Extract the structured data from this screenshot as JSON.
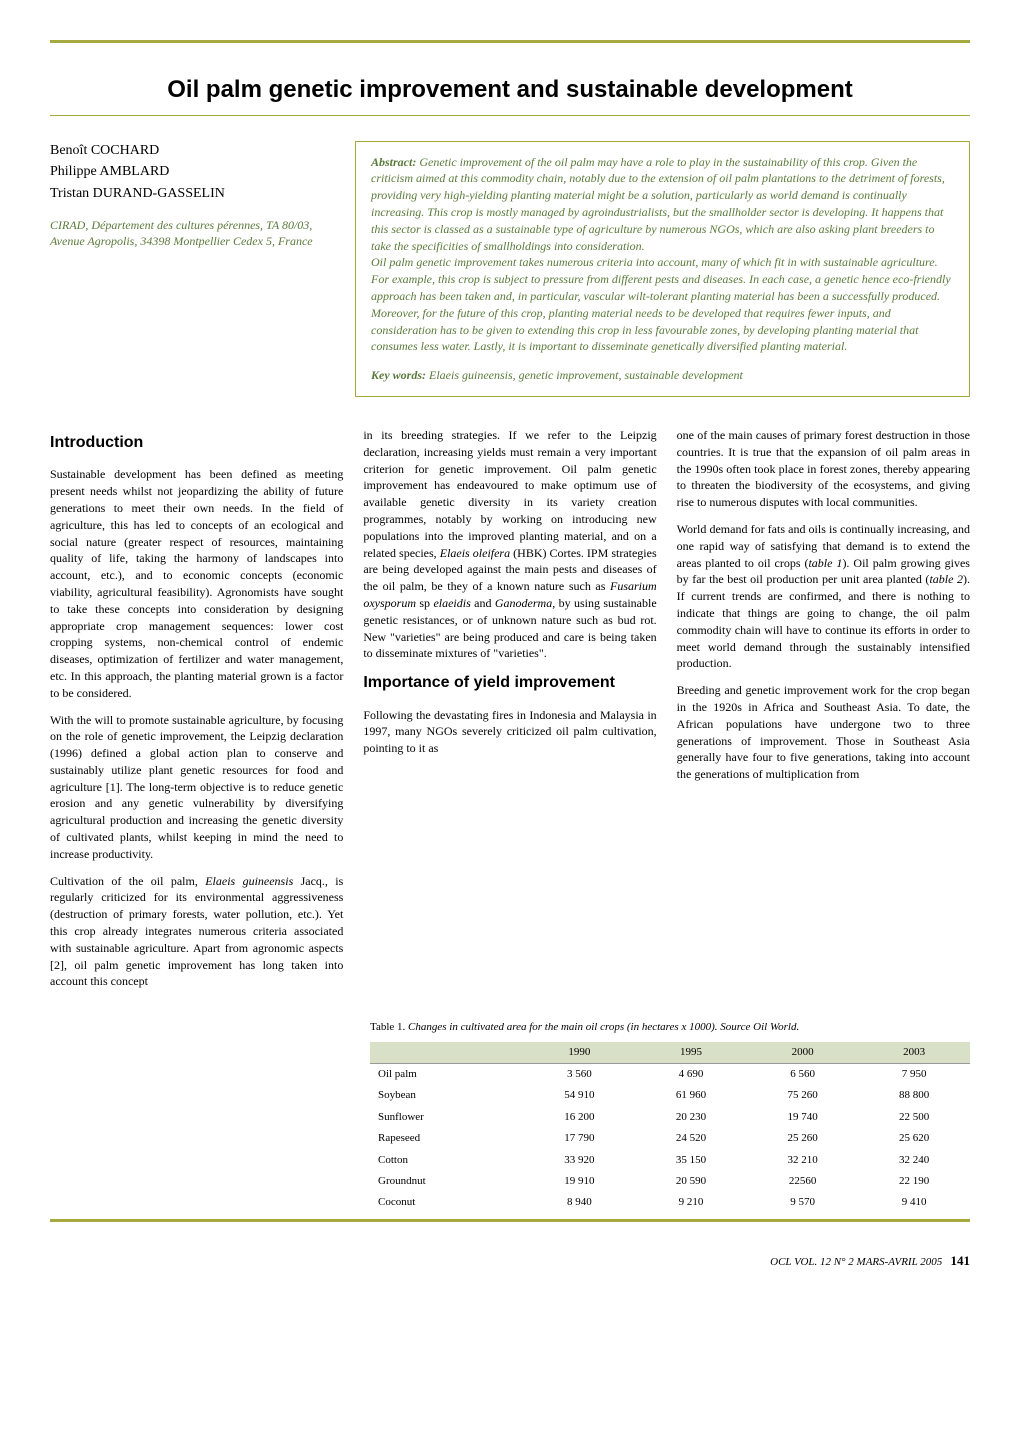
{
  "title": "Oil palm genetic improvement and sustainable development",
  "authors": [
    "Benoît COCHARD",
    "Philippe AMBLARD",
    "Tristan DURAND-GASSELIN"
  ],
  "affiliation": "CIRAD, Département des cultures pérennes, TA 80/03, Avenue Agropolis, 34398 Montpellier Cedex 5, France",
  "abstract_label": "Abstract:",
  "abstract_p1": "Genetic improvement of the oil palm may have a role to play in the sustainability of this crop. Given the criticism aimed at this commodity chain, notably due to the extension of oil palm plantations to the detriment of forests, providing very high-yielding planting material might be a solution, particularly as world demand is continually increasing. This crop is mostly managed by agroindustrialists, but the smallholder sector is developing. It happens that this sector is classed as a sustainable type of agriculture by numerous NGOs, which are also asking plant breeders to take the specificities of smallholdings into consideration.",
  "abstract_p2": "Oil palm genetic improvement takes numerous criteria into account, many of which fit in with sustainable agriculture. For example, this crop is subject to pressure from different pests and diseases. In each case, a genetic hence eco-friendly approach has been taken and, in particular, vascular wilt-tolerant planting material has been a successfully produced. Moreover, for the future of this crop, planting material needs to be developed that requires fewer inputs, and consideration has to be given to extending this crop in less favourable zones, by developing planting material that consumes less water. Lastly, it is important to disseminate genetically diversified planting material.",
  "keywords_label": "Key words:",
  "keywords": "Elaeis guineensis, genetic improvement, sustainable development",
  "sections": {
    "intro_heading": "Introduction",
    "importance_heading": "Importance of yield improvement"
  },
  "col1": {
    "p1": "Sustainable development has been defined as meeting present needs whilst not jeopardizing the ability of future generations to meet their own needs. In the field of agriculture, this has led to concepts of an ecological and social nature (greater respect of resources, maintaining quality of life, taking the harmony of landscapes into account, etc.), and to economic concepts (economic viability, agricultural feasibility). Agronomists have sought to take these concepts into consideration by designing appropriate crop management sequences: lower cost cropping systems, non-chemical control of endemic diseases, optimization of fertilizer and water management, etc. In this approach, the planting material grown is a factor to be considered.",
    "p2": "With the will to promote sustainable agriculture, by focusing on the role of genetic improvement, the Leipzig declaration (1996) defined a global action plan to conserve and sustainably utilize plant genetic resources for food and agriculture [1]. The long-term objective is to reduce genetic erosion and any genetic vulnerability by diversifying agricultural production and increasing the genetic diversity of cultivated plants, whilst keeping in mind the need to increase productivity.",
    "p3a": "Cultivation of the oil palm, ",
    "p3b": "Elaeis guineensis",
    "p3c": " Jacq., is regularly criticized for its environmental aggressiveness (destruction of primary forests, water pollution, etc.). Yet this crop already integrates numerous criteria associated with sustainable agriculture. Apart from agronomic aspects [2], oil palm genetic improvement has long taken into account this concept"
  },
  "col2": {
    "p1a": "in its breeding strategies. If we refer to the Leipzig declaration, increasing yields must remain a very important criterion for genetic improvement. Oil palm genetic improvement has endeavoured to make optimum use of available genetic diversity in its variety creation programmes, notably by working on introducing new populations into the improved planting material, and on a related species, ",
    "p1b": "Elaeis oleifera",
    "p1c": " (HBK) Cortes. IPM strategies are being developed against the main pests and diseases of the oil palm, be they of a known nature such as ",
    "p1d": "Fusarium oxysporum",
    "p1e": " sp ",
    "p1f": "elaeidis",
    "p1g": " and ",
    "p1h": "Gano­derma",
    "p1i": ", by using sustainable genetic resistances, or of unknown nature such as bud rot. New \"varieties\" are being produced and care is being taken to disseminate mixtures of \"varieties\".",
    "p2": "Following the devastating fires in Indonesia and Malaysia in 1997, many NGOs severely criticized oil palm cultivation, pointing to it as"
  },
  "col3": {
    "p1": "one of the main causes of primary forest destruction in those countries. It is true that the expansion of oil palm areas in the 1990s often took place in forest zones, thereby appearing to threaten the biodiversity of the ecosystems, and giving rise to numerous disputes with local communities.",
    "p2a": "World demand for fats and oils is continually increasing, and one rapid way of satisfying that demand is to extend the areas planted to oil crops (",
    "p2b": "table 1",
    "p2c": "). Oil palm growing gives by far the best oil production per unit area planted (",
    "p2d": "table 2",
    "p2e": "). If current trends are confirmed, and there is nothing to indicate that things are going to change, the oil palm commodity chain will have to continue its efforts in order to meet world demand through the sustainably intensified production.",
    "p3": "Breeding and genetic improvement work for the crop began in the 1920s in Africa and Southeast Asia. To date, the African populations have undergone two to three generations of improvement. Those in Southeast Asia generally have four to five generations, taking into account the generations of multiplication from"
  },
  "table1": {
    "caption_a": "Table 1. ",
    "caption_b": "Changes in cultivated area for the main oil crops (in hectares x 1000). Source Oil World.",
    "columns": [
      "",
      "1990",
      "1995",
      "2000",
      "2003"
    ],
    "rows": [
      [
        "Oil palm",
        "3 560",
        "4 690",
        "6 560",
        "7 950"
      ],
      [
        "Soybean",
        "54 910",
        "61 960",
        "75 260",
        "88 800"
      ],
      [
        "Sunflower",
        "16 200",
        "20 230",
        "19 740",
        "22 500"
      ],
      [
        "Rapeseed",
        "17 790",
        "24 520",
        "25 260",
        "25 620"
      ],
      [
        "Cotton",
        "33 920",
        "35 150",
        "32 210",
        "32 240"
      ],
      [
        "Groundnut",
        "19 910",
        "20 590",
        "22560",
        "22 190"
      ],
      [
        "Coconut",
        "8 940",
        "9 210",
        "9 570",
        "9 410"
      ]
    ],
    "header_bg": "#d8e0c8"
  },
  "footer": {
    "journal": "OCL",
    "issue": " VOL. 12 N° 2 MARS-AVRIL 2005",
    "page": "141"
  },
  "colors": {
    "rule": "#a8a840",
    "italic_green": "#5a7a3a"
  }
}
